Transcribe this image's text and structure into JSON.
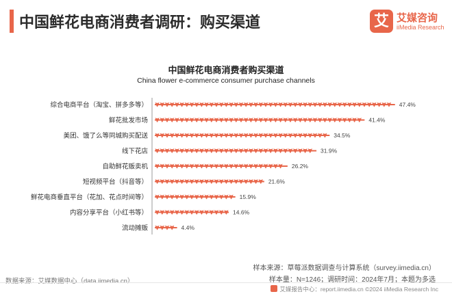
{
  "header": {
    "title": "中国鲜花电商消费者调研：购买渠道",
    "accent_color": "#e8664a"
  },
  "logo": {
    "mark": "艾",
    "name_cn": "艾媒咨询",
    "name_en": "iiMedia Research",
    "color": "#e8664a"
  },
  "chart_data": {
    "type": "bar",
    "orientation": "horizontal",
    "title": "中国鲜花电商消费者购买渠道",
    "subtitle": "China flower e-commerce consumer purchase channels",
    "categories": [
      "综合电商平台（淘宝、拼多多等）",
      "鲜花批发市场",
      "美团、饿了么等同城购买配送",
      "线下花店",
      "自助鲜花贩卖机",
      "短视频平台（抖音等）",
      "鲜花电商垂直平台（花加、花点时间等）",
      "内容分享平台（小红书等）",
      "流动摊贩"
    ],
    "values": [
      47.4,
      41.4,
      34.5,
      31.9,
      26.2,
      21.6,
      15.9,
      14.6,
      4.4
    ],
    "value_labels": [
      "47.4%",
      "41.4%",
      "34.5%",
      "31.9%",
      "26.2%",
      "21.6%",
      "15.9%",
      "14.6%",
      "4.4%"
    ],
    "unit": "%",
    "xlim": [
      0,
      50
    ],
    "grid": false,
    "bar_color": "#e8664a",
    "bar_style": "flower-icon-row"
  },
  "notes": {
    "sample_source": "样本来源：草莓派数据调查与计算系统（survey.iimedia.cn）",
    "sample_info": "样本量：N=1246；调研时间：2024年7月；本题为多选",
    "data_source": "数据来源：艾媒数据中心（data.iimedia.cn）"
  },
  "footer": {
    "credit": "艾媒报告中心：report.iimedia.cn  ©2024  iiMedia Research Inc"
  }
}
